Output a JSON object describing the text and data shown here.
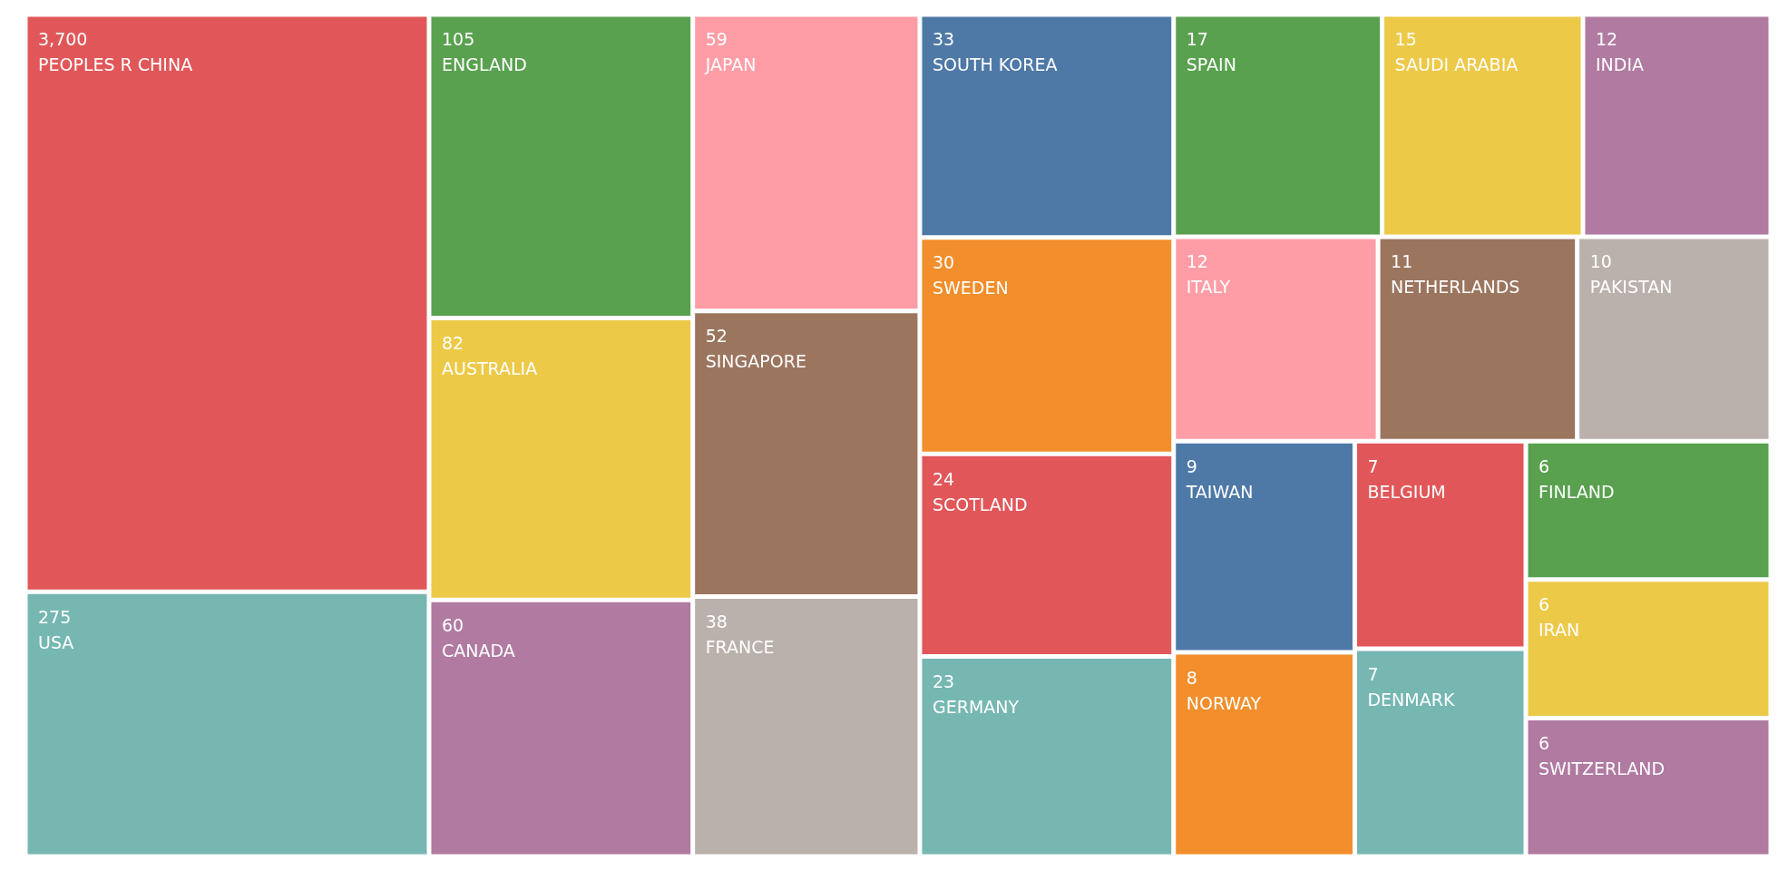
{
  "chart_data": {
    "type": "other",
    "categories": [
      "PEOPLES R CHINA",
      "USA",
      "ENGLAND",
      "AUSTRALIA",
      "CANADA",
      "JAPAN",
      "SINGAPORE",
      "FRANCE",
      "SOUTH KOREA",
      "SWEDEN",
      "SCOTLAND",
      "GERMANY",
      "SPAIN",
      "SAUDI ARABIA",
      "INDIA",
      "ITALY",
      "NETHERLANDS",
      "PAKISTAN",
      "TAIWAN",
      "NORWAY",
      "BELGIUM",
      "DENMARK",
      "FINLAND",
      "IRAN",
      "SWITZERLAND"
    ],
    "values": [
      3700,
      275,
      105,
      82,
      60,
      59,
      52,
      38,
      33,
      30,
      24,
      23,
      17,
      15,
      12,
      12,
      11,
      10,
      9,
      8,
      7,
      7,
      6,
      6,
      6
    ],
    "value_labels": [
      "3,700",
      "275",
      "105",
      "82",
      "60",
      "59",
      "52",
      "38",
      "33",
      "30",
      "24",
      "23",
      "17",
      "15",
      "12",
      "12",
      "11",
      "10",
      "9",
      "8",
      "7",
      "7",
      "6",
      "6",
      "6"
    ],
    "colors": [
      "#e15759",
      "#76b7b2",
      "#59a14f",
      "#edc948",
      "#b07aa1",
      "#ff9da7",
      "#9c755f",
      "#bab0ac",
      "#4e79a7",
      "#f28e2b",
      "#e15759",
      "#76b7b2",
      "#59a14f",
      "#edc948",
      "#b07aa1",
      "#ff9da7",
      "#9c755f",
      "#bab0ac",
      "#4e79a7",
      "#f28e2b",
      "#e15759",
      "#76b7b2",
      "#59a14f",
      "#edc948",
      "#b07aa1"
    ]
  }
}
